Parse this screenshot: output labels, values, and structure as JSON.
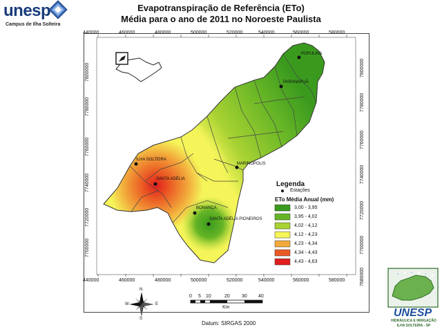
{
  "logo_left": {
    "name": "unesp",
    "subtitle": "Campus de Ilha Solteira"
  },
  "title": {
    "line1": "Evapotranspiração de Referência (ETo)",
    "line2": "Média para o ano de 2011 no Noroeste Paulista"
  },
  "x_ticks": [
    "440000",
    "460000",
    "480000",
    "500000",
    "520000",
    "540000",
    "560000",
    "580000"
  ],
  "y_ticks": [
    "7800000",
    "7780000",
    "7760000",
    "7740000",
    "7720000",
    "7700000"
  ],
  "y_ticks_right": [
    "7800000",
    "7780000",
    "7760000",
    "7740000",
    "7720000",
    "7700000",
    "7680000"
  ],
  "places": [
    {
      "name": "POPULINA"
    },
    {
      "name": "PARANAPUÃ"
    },
    {
      "name": "MARINÓPOLIS"
    },
    {
      "name": "ILHA SOLTEIRA"
    },
    {
      "name": "SANTA ADÉLIA"
    },
    {
      "name": "BONANÇA"
    },
    {
      "name": "SANTA ADÉLIA PIONEIROS"
    }
  ],
  "legend": {
    "title": "Legenda",
    "station_label": "Estações",
    "subtitle": "ETo Média Anual (mm)",
    "classes": [
      {
        "label": "3,00 - 3,95",
        "color": "#3a9a1e"
      },
      {
        "label": "3,95 - 4,02",
        "color": "#66b526"
      },
      {
        "label": "4,02 - 4,12",
        "color": "#a8d232"
      },
      {
        "label": "4,12 - 4,23",
        "color": "#f5f55a"
      },
      {
        "label": "4,23 - 4,34",
        "color": "#f2a93b"
      },
      {
        "label": "4,34 - 4,43",
        "color": "#eb5a24"
      },
      {
        "label": "4,43 - 4,63",
        "color": "#e01e1e"
      }
    ]
  },
  "scale": {
    "labels": [
      "0",
      "5",
      "10",
      "20",
      "30",
      "40"
    ],
    "unit": "Km"
  },
  "datum": "Datum: SIRGAS 2000",
  "compass": {
    "n": "N",
    "s": "S",
    "e": "E",
    "w": "W"
  },
  "logo_right": {
    "name": "UNESP",
    "line1": "HIDRÁULICA E IRRIGAÇÃO",
    "line2": "ILHA SOLTEIRA - SP"
  }
}
